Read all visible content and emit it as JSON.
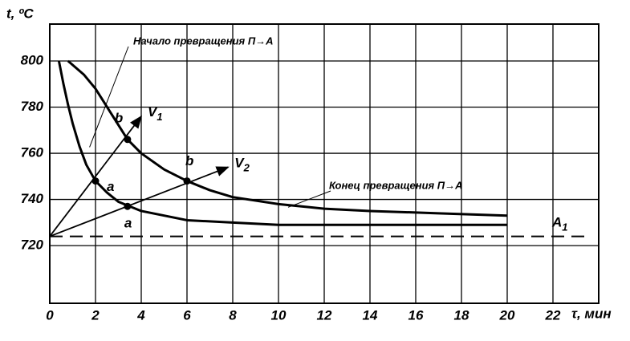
{
  "chart_data": {
    "type": "line",
    "y_label": "t, ºC",
    "x_label": "τ, мин",
    "xlim": [
      0,
      24
    ],
    "ylim": [
      695,
      816
    ],
    "xticks": [
      0,
      2,
      4,
      6,
      8,
      10,
      12,
      14,
      16,
      18,
      20,
      22
    ],
    "xgrid": [
      0,
      2,
      4,
      6,
      8,
      10,
      12,
      14,
      16,
      18,
      20,
      22,
      24
    ],
    "yticks": [
      720,
      740,
      760,
      780,
      800
    ],
    "grid": true,
    "series": [
      {
        "name": "Начало превращения П→А",
        "color": "#000000",
        "x": [
          0.4,
          0.6,
          0.8,
          1.0,
          1.3,
          1.6,
          2.0,
          2.5,
          3.0,
          3.5,
          4.0,
          5.0,
          6.0,
          8.0,
          10.0,
          14.0,
          20.0
        ],
        "values": [
          800,
          790,
          781,
          773,
          763,
          755,
          748,
          743,
          739,
          737,
          735,
          733,
          731,
          730,
          729,
          729,
          729
        ]
      },
      {
        "name": "Конец превращения П→А",
        "color": "#000000",
        "x": [
          0.8,
          1.5,
          2.0,
          2.7,
          3.4,
          4.0,
          5.0,
          6.0,
          7.0,
          8.0,
          10.0,
          12.0,
          14.0,
          17.0,
          20.0
        ],
        "values": [
          800,
          794,
          788,
          777,
          766,
          760,
          753,
          748,
          744,
          741,
          738,
          736,
          735,
          734,
          733
        ]
      }
    ],
    "rays": [
      {
        "label": {
          "text": "V",
          "sub": "1"
        },
        "x": [
          0,
          4
        ],
        "values": [
          724,
          776
        ]
      },
      {
        "label": {
          "text": "V",
          "sub": "2"
        },
        "x": [
          0,
          7.8
        ],
        "values": [
          724,
          754
        ]
      }
    ],
    "points": [
      {
        "label": "a",
        "x": 2.0,
        "y": 748
      },
      {
        "label": "b",
        "x": 3.4,
        "y": 766
      },
      {
        "label": "a",
        "x": 3.4,
        "y": 737
      },
      {
        "label": "b",
        "x": 6.0,
        "y": 748
      }
    ],
    "critical_line": {
      "label": {
        "text": "A",
        "sub": "1"
      },
      "value": 724
    }
  }
}
